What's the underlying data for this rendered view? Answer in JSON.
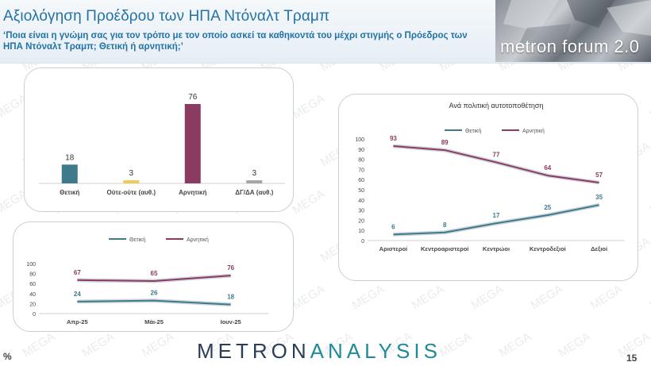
{
  "header": {
    "title": "Αξιολόγηση Προέδρου των ΗΠΑ Ντόναλτ Τραμπ",
    "subtitle": "‘Ποια είναι η γνώμη σας για τον τρόπο με τον οποίο ασκεί τα καθηκοντά του μέχρι στιγμής ο Πρόεδρος των ΗΠΑ Ντόναλτ Τραμπ; Θετική ή αρνητική;’"
  },
  "brand": {
    "label": "metron forum 2.0"
  },
  "watermark": {
    "text": "MEGA"
  },
  "footer": {
    "logo_left": "METRON",
    "logo_right": "ANALYSIS",
    "percent_sign": "%",
    "page_number": "15"
  },
  "colors": {
    "positive": "#3f7a8c",
    "negative": "#8b3a62",
    "neutral": "#f0cc56",
    "dk": "#a6a6a6",
    "title": "#2472a4"
  },
  "chart_data": [
    {
      "type": "bar",
      "title": "",
      "categories": [
        "Θετική",
        "Ούτε-ούτε (αυθ.)",
        "Αρνητική",
        "ΔΓ/ΔΑ (αυθ.)"
      ],
      "values": [
        18,
        3,
        76,
        3
      ],
      "ylim": [
        0,
        76
      ],
      "bar_colors": [
        "#3f7a8c",
        "#f0cc56",
        "#8b3a62",
        "#a6a6a6"
      ],
      "data_labels": true,
      "grid": false
    },
    {
      "type": "line",
      "title": "",
      "categories": [
        "Απρ-25",
        "Μάι-25",
        "Ιουν-25"
      ],
      "series": [
        {
          "name": "Θετική",
          "values": [
            24,
            26,
            18
          ],
          "color": "#3f7a8c"
        },
        {
          "name": "Αρνητική",
          "values": [
            67,
            65,
            76
          ],
          "color": "#8b3a62"
        }
      ],
      "yticks": [
        0,
        20,
        40,
        60,
        80,
        100
      ],
      "ylim": [
        0,
        100
      ],
      "legend": "top",
      "grid": false
    },
    {
      "type": "line",
      "title": "Ανά πολιτική αυτοτοποθέτηση",
      "categories": [
        "Αριστεροί",
        "Κεντροαριστεροί",
        "Κεντρώοι",
        "Κεντροδεξιοί",
        "Δεξιοί"
      ],
      "series": [
        {
          "name": "Θετική",
          "values": [
            6,
            8,
            17,
            25,
            35
          ],
          "color": "#3f7a8c"
        },
        {
          "name": "Αρνητική",
          "values": [
            93,
            89,
            77,
            64,
            57
          ],
          "color": "#8b3a62"
        }
      ],
      "yticks": [
        0,
        10,
        20,
        30,
        40,
        50,
        60,
        70,
        80,
        90,
        100
      ],
      "ylim": [
        0,
        100
      ],
      "legend": "top",
      "grid": false
    }
  ]
}
